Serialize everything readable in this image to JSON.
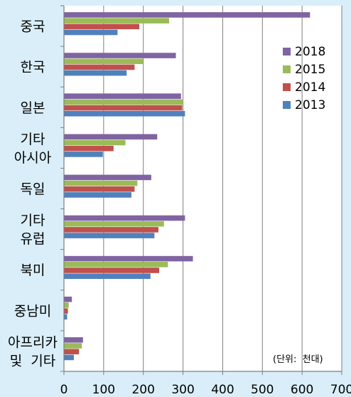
{
  "chart_data": {
    "type": "bar",
    "orientation": "horizontal",
    "categories": [
      [
        "중국"
      ],
      [
        "한국"
      ],
      [
        "일본"
      ],
      [
        "기타",
        "아시아"
      ],
      [
        "독일"
      ],
      [
        "기타",
        "유럽"
      ],
      [
        "북미"
      ],
      [
        "중남미"
      ],
      [
        "아프리카",
        "및  기타"
      ]
    ],
    "series": [
      {
        "name": "2018",
        "color": "#8064a2",
        "values": [
          620,
          282,
          295,
          235,
          220,
          305,
          325,
          20,
          48
        ]
      },
      {
        "name": "2015",
        "color": "#9bbb59",
        "values": [
          265,
          200,
          300,
          155,
          185,
          252,
          262,
          12,
          45
        ]
      },
      {
        "name": "2014",
        "color": "#c0504d",
        "values": [
          190,
          178,
          298,
          125,
          178,
          238,
          240,
          10,
          38
        ]
      },
      {
        "name": "2013",
        "color": "#4f81bd",
        "values": [
          135,
          158,
          305,
          98,
          170,
          228,
          218,
          8,
          25
        ]
      }
    ],
    "x_ticks": [
      "0",
      "100",
      "200",
      "300",
      "400",
      "500",
      "600",
      "700"
    ],
    "xlim": [
      0,
      700
    ],
    "grid": true,
    "legend_position": "top-right",
    "annotation": "(단위:  천대)",
    "background_color": "#d9eef9",
    "plot_background": "#ffffff"
  }
}
